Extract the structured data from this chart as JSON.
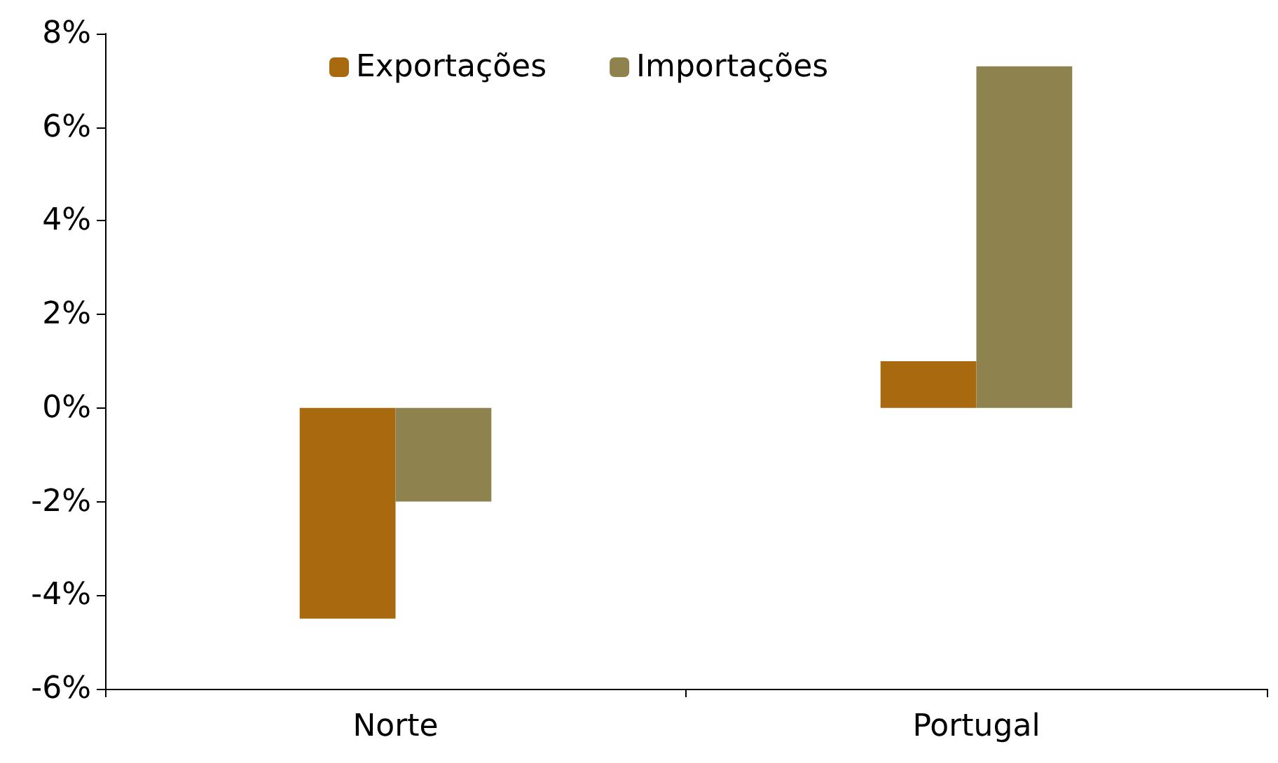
{
  "chart_data": {
    "type": "bar",
    "categories": [
      "Norte",
      "Portugal"
    ],
    "series": [
      {
        "name": "Exportações",
        "color": "#a8690f",
        "values": [
          -4.5,
          1.0
        ]
      },
      {
        "name": "Importações",
        "color": "#8e834f",
        "values": [
          -2.0,
          7.3
        ]
      }
    ],
    "ylim": [
      -6,
      8
    ],
    "yticks": [
      {
        "value": -6,
        "label": "-6%"
      },
      {
        "value": -4,
        "label": "-4%"
      },
      {
        "value": -2,
        "label": "-2%"
      },
      {
        "value": 0,
        "label": "0%"
      },
      {
        "value": 2,
        "label": "2%"
      },
      {
        "value": 4,
        "label": "4%"
      },
      {
        "value": 6,
        "label": "6%"
      },
      {
        "value": 8,
        "label": "8%"
      }
    ],
    "grid": false,
    "legend": "top"
  }
}
